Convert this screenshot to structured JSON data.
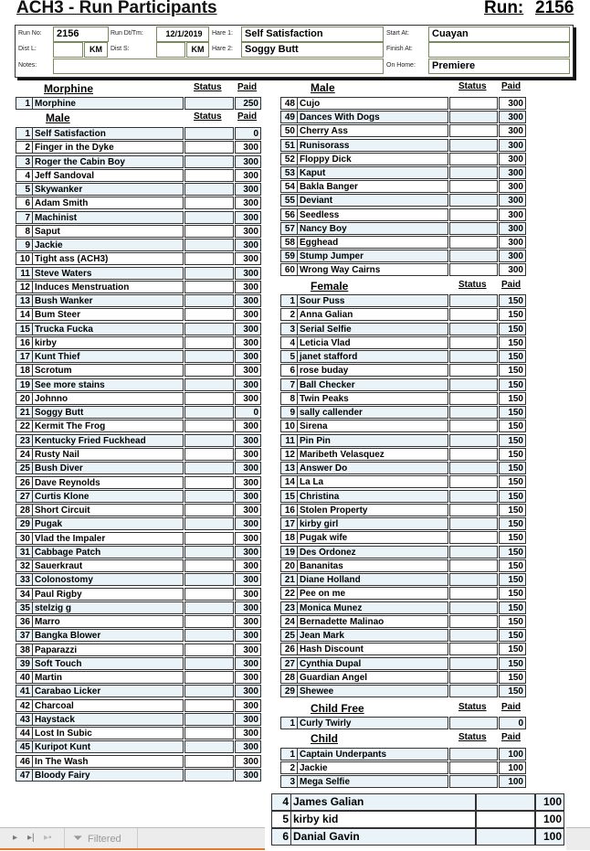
{
  "header": {
    "title": "ACH3 - Run Participants",
    "run_label": "Run:",
    "run_number": "2156"
  },
  "run_info": {
    "run_no_label": "Run No:",
    "run_no": "2156",
    "run_dt_label": "Run Dt/Tm:",
    "run_dt": "12/1/2019",
    "hare1_label": "Hare 1:",
    "hare1": "Self Satisfaction",
    "hare2_label": "Hare 2:",
    "hare2": "Soggy Butt",
    "start_label": "Start At:",
    "start": "Cuayan",
    "finish_label": "Finish At:",
    "finish": "",
    "home_label": "On Home:",
    "home": "Premiere",
    "dist_l_label": "Dist L:",
    "dist_l": "",
    "dist_s_label": "Dist S:",
    "dist_s": "",
    "km": "KM",
    "notes_label": "Notes:",
    "notes": ""
  },
  "col_status": "Status",
  "col_paid": "Paid",
  "sections": {
    "morphine": {
      "title": "Morphine",
      "rows": [
        [
          "1",
          "Morphine",
          "",
          "250"
        ]
      ]
    },
    "male_left": {
      "title": "Male",
      "rows": [
        [
          "1",
          "Self Satisfaction",
          "",
          "0"
        ],
        [
          "2",
          "Finger in the Dyke",
          "",
          "300"
        ],
        [
          "3",
          "Roger the Cabin Boy",
          "",
          "300"
        ],
        [
          "4",
          "Jeff Sandoval",
          "",
          "300"
        ],
        [
          "5",
          "Skywanker",
          "",
          "300"
        ],
        [
          "6",
          "Adam Smith",
          "",
          "300"
        ],
        [
          "7",
          "Machinist",
          "",
          "300"
        ],
        [
          "8",
          "Saput",
          "",
          "300"
        ],
        [
          "9",
          "Jackie",
          "",
          "300"
        ],
        [
          "10",
          "Tight ass (ACH3)",
          "",
          "300"
        ],
        [
          "11",
          "Steve Waters",
          "",
          "300"
        ],
        [
          "12",
          "Induces Menstruation",
          "",
          "300"
        ],
        [
          "13",
          "Bush Wanker",
          "",
          "300"
        ],
        [
          "14",
          "Bum Steer",
          "",
          "300"
        ],
        [
          "15",
          "Trucka Fucka",
          "",
          "300"
        ],
        [
          "16",
          "kirby",
          "",
          "300"
        ],
        [
          "17",
          "Kunt Thief",
          "",
          "300"
        ],
        [
          "18",
          "Scrotum",
          "",
          "300"
        ],
        [
          "19",
          "See more stains",
          "",
          "300"
        ],
        [
          "20",
          "Johnno",
          "",
          "300"
        ],
        [
          "21",
          "Soggy Butt",
          "",
          "0"
        ],
        [
          "22",
          "Kermit The Frog",
          "",
          "300"
        ],
        [
          "23",
          "Kentucky Fried Fuckhead",
          "",
          "300"
        ],
        [
          "24",
          "Rusty Nail",
          "",
          "300"
        ],
        [
          "25",
          "Bush Diver",
          "",
          "300"
        ],
        [
          "26",
          "Dave Reynolds",
          "",
          "300"
        ],
        [
          "27",
          "Curtis Klone",
          "",
          "300"
        ],
        [
          "28",
          "Short Circuit",
          "",
          "300"
        ],
        [
          "29",
          "Pugak",
          "",
          "300"
        ],
        [
          "30",
          "Vlad the Impaler",
          "",
          "300"
        ],
        [
          "31",
          "Cabbage Patch",
          "",
          "300"
        ],
        [
          "32",
          "Sauerkraut",
          "",
          "300"
        ],
        [
          "33",
          "Colonostomy",
          "",
          "300"
        ],
        [
          "34",
          "Paul Rigby",
          "",
          "300"
        ],
        [
          "35",
          "stelzig g",
          "",
          "300"
        ],
        [
          "36",
          "Marro",
          "",
          "300"
        ],
        [
          "37",
          "Bangka  Blower",
          "",
          "300"
        ],
        [
          "38",
          "Paparazzi",
          "",
          "300"
        ],
        [
          "39",
          "Soft Touch",
          "",
          "300"
        ],
        [
          "40",
          "Martin",
          "",
          "300"
        ],
        [
          "41",
          "Carabao Licker",
          "",
          "300"
        ],
        [
          "42",
          "Charcoal",
          "",
          "300"
        ],
        [
          "43",
          "Haystack",
          "",
          "300"
        ],
        [
          "44",
          "Lost In Subic",
          "",
          "300"
        ],
        [
          "45",
          "Kuripot Kunt",
          "",
          "300"
        ],
        [
          "46",
          "In The Wash",
          "",
          "300"
        ],
        [
          "47",
          "Bloody Fairy",
          "",
          "300"
        ]
      ]
    },
    "male_right": {
      "title": "Male",
      "rows": [
        [
          "48",
          "Cujo",
          "",
          "300"
        ],
        [
          "49",
          "Dances With Dogs",
          "",
          "300"
        ],
        [
          "50",
          "Cherry Ass",
          "",
          "300"
        ],
        [
          "51",
          "Runisorass",
          "",
          "300"
        ],
        [
          "52",
          "Floppy Dick",
          "",
          "300"
        ],
        [
          "53",
          "Kaput",
          "",
          "300"
        ],
        [
          "54",
          "Bakla Banger",
          "",
          "300"
        ],
        [
          "55",
          "Deviant",
          "",
          "300"
        ],
        [
          "56",
          "Seedless",
          "",
          "300"
        ],
        [
          "57",
          "Nancy Boy",
          "",
          "300"
        ],
        [
          "58",
          "Egghead",
          "",
          "300"
        ],
        [
          "59",
          "Stump Jumper",
          "",
          "300"
        ],
        [
          "60",
          "Wrong Way Cairns",
          "",
          "300"
        ]
      ]
    },
    "female": {
      "title": "Female",
      "rows": [
        [
          "1",
          "Sour Puss",
          "",
          "150"
        ],
        [
          "2",
          "Anna Galian",
          "",
          "150"
        ],
        [
          "3",
          "Serial Selfie",
          "",
          "150"
        ],
        [
          "4",
          "Leticia Vlad",
          "",
          "150"
        ],
        [
          "5",
          "janet stafford",
          "",
          "150"
        ],
        [
          "6",
          "rose buday",
          "",
          "150"
        ],
        [
          "7",
          "Ball Checker",
          "",
          "150"
        ],
        [
          "8",
          "Twin Peaks",
          "",
          "150"
        ],
        [
          "9",
          "sally callender",
          "",
          "150"
        ],
        [
          "10",
          "Sirena",
          "",
          "150"
        ],
        [
          "11",
          "Pin Pin",
          "",
          "150"
        ],
        [
          "12",
          "Maribeth Velasquez",
          "",
          "150"
        ],
        [
          "13",
          "Answer Do",
          "",
          "150"
        ],
        [
          "14",
          "La La",
          "",
          "150"
        ],
        [
          "15",
          "Christina",
          "",
          "150"
        ],
        [
          "16",
          "Stolen Property",
          "",
          "150"
        ],
        [
          "17",
          "kirby girl",
          "",
          "150"
        ],
        [
          "18",
          "Pugak wife",
          "",
          "150"
        ],
        [
          "19",
          "Des Ordonez",
          "",
          "150"
        ],
        [
          "20",
          "Bananitas",
          "",
          "150"
        ],
        [
          "21",
          "Diane Holland",
          "",
          "150"
        ],
        [
          "22",
          "Pee on me",
          "",
          "150"
        ],
        [
          "23",
          "Monica Munez",
          "",
          "150"
        ],
        [
          "24",
          "Bernadette Malinao",
          "",
          "150"
        ],
        [
          "25",
          "Jean Mark",
          "",
          "150"
        ],
        [
          "26",
          "Hash Discount",
          "",
          "150"
        ],
        [
          "27",
          "Cynthia Dupal",
          "",
          "150"
        ],
        [
          "28",
          "Guardian Angel",
          "",
          "150"
        ],
        [
          "29",
          "Shewee",
          "",
          "150"
        ]
      ]
    },
    "child_free": {
      "title": "Child Free",
      "rows": [
        [
          "1",
          "Curly Twirly",
          "",
          "0"
        ]
      ]
    },
    "child": {
      "title": "Child",
      "rows": [
        [
          "1",
          "Captain Underpants",
          "",
          "100"
        ],
        [
          "2",
          "Jackie",
          "",
          "100"
        ],
        [
          "3",
          "Mega Selfie",
          "",
          "100"
        ]
      ]
    },
    "child_overflow": {
      "rows": [
        [
          "4",
          "James Galian",
          "",
          "100"
        ],
        [
          "5",
          "kirby kid",
          "",
          "100"
        ],
        [
          "6",
          "Danial Gavin",
          "",
          "100"
        ]
      ]
    }
  },
  "sheet_bar": {
    "filtered_label": "Filtered",
    "filter_icon": "funnel-icon",
    "nav_icons": [
      "next-sheet-icon",
      "last-sheet-icon",
      "new-sheet-icon"
    ]
  }
}
